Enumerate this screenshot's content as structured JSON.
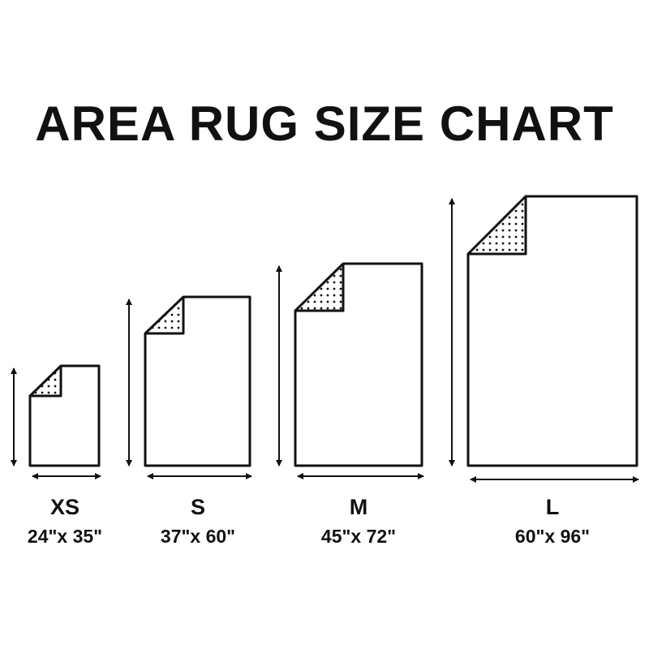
{
  "title": "AREA RUG SIZE CHART",
  "colors": {
    "line": "#111111",
    "background": "#ffffff"
  },
  "rugs": [
    {
      "size": "XS",
      "dimensions": "24\"x 35\""
    },
    {
      "size": "S",
      "dimensions": "37\"x 60\""
    },
    {
      "size": "M",
      "dimensions": "45\"x 72\""
    },
    {
      "size": "L",
      "dimensions": "60\"x 96\""
    }
  ]
}
